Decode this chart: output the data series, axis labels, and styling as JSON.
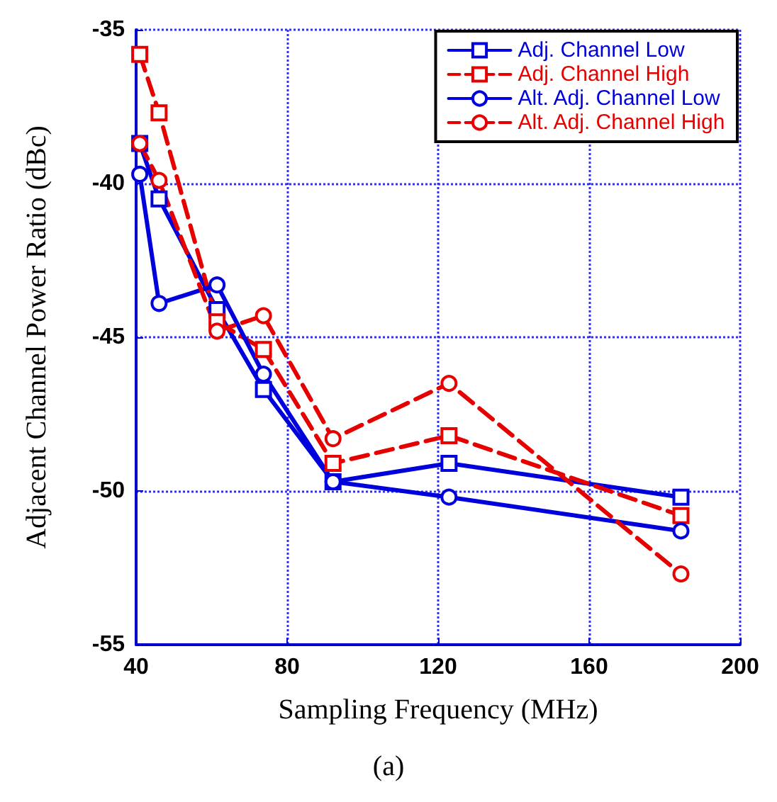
{
  "chart_data": {
    "type": "line",
    "xlabel": "Sampling Frequency (MHz)",
    "ylabel": "Adjacent Channel Power Ratio (dBc)",
    "annotations": [
      "(a)"
    ],
    "x": [
      40.96,
      46.08,
      61.44,
      73.73,
      92.16,
      122.88,
      184.32
    ],
    "series": [
      {
        "name": "Adj. Channel Low",
        "color": "#0000dd",
        "marker": "square",
        "line_style": "solid",
        "values": [
          -38.7,
          -40.5,
          -44.1,
          -46.7,
          -49.7,
          -49.1,
          -50.2
        ]
      },
      {
        "name": "Adj. Channel High",
        "color": "#e60000",
        "marker": "square",
        "line_style": "dashed",
        "values": [
          -35.8,
          -37.7,
          -44.5,
          -45.4,
          -49.1,
          -48.2,
          -50.8
        ]
      },
      {
        "name": "Alt. Adj. Channel Low",
        "color": "#0000dd",
        "marker": "circle",
        "line_style": "solid",
        "values": [
          -39.7,
          -43.9,
          -43.3,
          -46.2,
          -49.7,
          -50.2,
          -51.3
        ]
      },
      {
        "name": "Alt. Adj. Channel High",
        "color": "#e60000",
        "marker": "circle",
        "line_style": "dashed",
        "values": [
          -38.7,
          -39.9,
          -44.8,
          -44.3,
          -48.3,
          -46.5,
          -52.7
        ]
      }
    ],
    "xlim": [
      40,
      200
    ],
    "xticks": [
      40,
      80,
      120,
      160,
      200
    ],
    "ylim": [
      -55,
      -35
    ],
    "yticks": [
      -55,
      -50,
      -45,
      -40,
      -35
    ],
    "grid": true,
    "legend": "top right"
  }
}
